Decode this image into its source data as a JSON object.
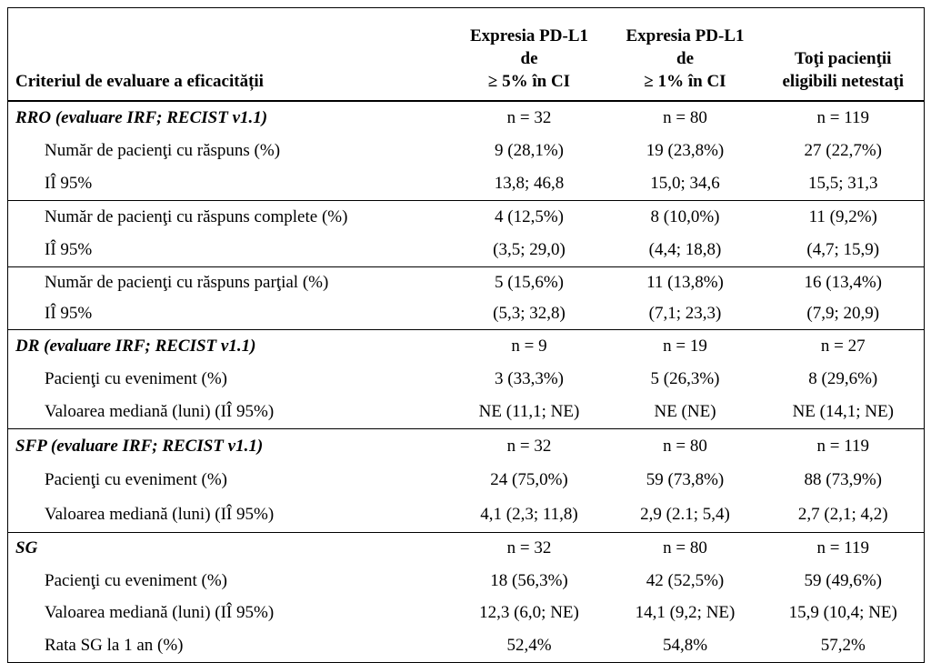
{
  "table": {
    "header": [
      [
        "Criteriul de evaluare a eficacității"
      ],
      [
        "Expresia PD-L1",
        "de",
        "≥ 5% în CI"
      ],
      [
        "Expresia PD-L1",
        "de",
        "≥ 1% în CI"
      ],
      [
        "Toţi pacienţii",
        "eligibili netestaţi"
      ]
    ],
    "groups": [
      {
        "title": [
          "RRO (evaluare IRF; RECIST v1.1)",
          "n = 32",
          "n = 80",
          "n = 119"
        ],
        "rows": [
          [
            "Număr de pacienţi cu răspuns (%)",
            "9 (28,1%)",
            "19 (23,8%)",
            "27 (22,7%)"
          ],
          [
            "IÎ 95%",
            "13,8; 46,8",
            "15,0; 34,6",
            "15,5; 31,3"
          ]
        ]
      },
      {
        "rows": [
          [
            "Număr de pacienţi cu răspuns complete (%)",
            "4 (12,5%)",
            "8 (10,0%)",
            "11 (9,2%)"
          ],
          [
            "IÎ 95%",
            "(3,5; 29,0)",
            "(4,4; 18,8)",
            "(4,7; 15,9)"
          ]
        ]
      },
      {
        "rows": [
          [
            "Număr de pacienţi cu răspuns parţial (%)",
            "5 (15,6%)",
            "11 (13,8%)",
            "16 (13,4%)"
          ],
          [
            "IÎ 95%",
            "(5,3; 32,8)",
            "(7,1; 23,3)",
            "(7,9; 20,9)"
          ]
        ]
      },
      {
        "title": [
          "DR (evaluare IRF; RECIST v1.1)",
          "n = 9",
          "n = 19",
          "n = 27"
        ],
        "rows": [
          [
            "Pacienţi cu eveniment (%)",
            "3 (33,3%)",
            "5 (26,3%)",
            "8 (29,6%)"
          ],
          [
            "Valoarea mediană (luni) (IÎ 95%)",
            "NE (11,1; NE)",
            "NE (NE)",
            "NE (14,1; NE)"
          ]
        ]
      },
      {
        "title": [
          "SFP (evaluare IRF; RECIST v1.1)",
          "n = 32",
          "n = 80",
          "n = 119"
        ],
        "rows": [
          [
            "Pacienţi cu eveniment (%)",
            "24 (75,0%)",
            "59 (73,8%)",
            "88 (73,9%)"
          ],
          [
            "Valoarea mediană (luni) (IÎ 95%)",
            "4,1 (2,3; 11,8)",
            "2,9 (2.1; 5,4)",
            "2,7 (2,1; 4,2)"
          ]
        ]
      },
      {
        "title": [
          "SG",
          "n = 32",
          "n = 80",
          "n = 119"
        ],
        "rows": [
          [
            "Pacienţi cu eveniment (%)",
            "18 (56,3%)",
            "42 (52,5%)",
            "59 (49,6%)"
          ],
          [
            "Valoarea mediană (luni) (IÎ 95%)",
            "12,3 (6,0; NE)",
            "14,1 (9,2; NE)",
            "15,9 (10,4; NE)"
          ],
          [
            "Rata SG la 1 an (%)",
            "52,4%",
            "54,8%",
            "57,2%"
          ]
        ]
      }
    ]
  }
}
